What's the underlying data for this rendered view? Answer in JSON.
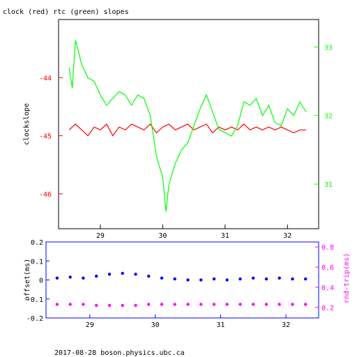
{
  "footer": "2017-08-28  boson.physics.ubc.ca",
  "chart_data": [
    {
      "type": "line",
      "title": "clock (red) rtc (green) slopes",
      "ylabel": "clockslope",
      "x_ticks": [
        "29",
        "30",
        "31",
        "32"
      ],
      "xlim": [
        28.33,
        32.5
      ],
      "ylim_left": [
        -46.6,
        -43.0
      ],
      "ylim_right": [
        30.35,
        33.4
      ],
      "left_ticks": [
        "-44",
        "-45",
        "-46"
      ],
      "right_ticks": [
        "33",
        "32",
        "31"
      ],
      "colors": {
        "clock": "#ff0000",
        "rtc": "#00ff00"
      },
      "series": [
        {
          "name": "clock",
          "axis": "left",
          "color": "#ff0000",
          "x": [
            28.5,
            28.6,
            28.7,
            28.8,
            28.9,
            29.0,
            29.1,
            29.2,
            29.3,
            29.4,
            29.5,
            29.6,
            29.7,
            29.8,
            29.9,
            30.0,
            30.1,
            30.2,
            30.3,
            30.4,
            30.5,
            30.6,
            30.7,
            30.8,
            30.9,
            31.0,
            31.1,
            31.2,
            31.3,
            31.4,
            31.5,
            31.6,
            31.7,
            31.8,
            31.9,
            32.0,
            32.1,
            32.2,
            32.3
          ],
          "y": [
            -44.9,
            -44.8,
            -44.9,
            -45.0,
            -44.85,
            -44.9,
            -44.8,
            -45.0,
            -44.85,
            -44.9,
            -44.8,
            -44.85,
            -44.9,
            -44.8,
            -44.95,
            -44.85,
            -44.8,
            -44.9,
            -44.85,
            -44.8,
            -44.9,
            -44.85,
            -44.8,
            -44.95,
            -44.85,
            -44.9,
            -44.85,
            -44.9,
            -44.8,
            -44.9,
            -44.85,
            -44.9,
            -44.85,
            -44.9,
            -44.85,
            -44.9,
            -44.95,
            -44.9,
            -44.9
          ]
        },
        {
          "name": "rtc",
          "axis": "right",
          "color": "#00ff00",
          "x": [
            28.5,
            28.55,
            28.6,
            28.7,
            28.8,
            28.9,
            29.0,
            29.1,
            29.2,
            29.3,
            29.4,
            29.5,
            29.6,
            29.7,
            29.8,
            29.9,
            30.0,
            30.05,
            30.1,
            30.2,
            30.3,
            30.4,
            30.5,
            30.6,
            30.7,
            30.8,
            30.9,
            31.0,
            31.1,
            31.2,
            31.3,
            31.4,
            31.5,
            31.6,
            31.7,
            31.8,
            31.9,
            32.0,
            32.1,
            32.2,
            32.3
          ],
          "y": [
            32.7,
            32.4,
            33.1,
            32.75,
            32.55,
            32.5,
            32.3,
            32.15,
            32.25,
            32.35,
            32.3,
            32.15,
            32.3,
            32.25,
            32.0,
            31.4,
            31.1,
            30.6,
            31.0,
            31.3,
            31.5,
            31.6,
            31.85,
            32.1,
            32.3,
            32.05,
            31.8,
            31.75,
            31.7,
            31.85,
            32.2,
            32.15,
            32.25,
            32.0,
            32.15,
            31.9,
            31.85,
            32.1,
            32.0,
            32.2,
            32.05
          ]
        }
      ]
    },
    {
      "type": "scatter",
      "x_ticks": [
        "29",
        "30",
        "31",
        "32"
      ],
      "xlim": [
        28.33,
        32.5
      ],
      "ylim_left": [
        -0.2,
        0.2
      ],
      "ylim_right": [
        0.095,
        0.85
      ],
      "left_ticks": [
        "0.2",
        "0.1",
        "0",
        "-0.1",
        "-0.2"
      ],
      "right_ticks": [
        "0.8",
        "0.6",
        "0.4",
        "0.2"
      ],
      "ylabel_left": "offset(ms)",
      "ylabel_right": "rnd-trip(ms)",
      "colors": {
        "offset": "#0000ff",
        "roundtrip": "#ff00ff"
      },
      "series": [
        {
          "name": "offset",
          "axis": "left",
          "color": "#0000ff",
          "x": [
            28.5,
            28.7,
            28.9,
            29.1,
            29.3,
            29.5,
            29.7,
            29.9,
            30.1,
            30.3,
            30.5,
            30.7,
            30.9,
            31.1,
            31.3,
            31.5,
            31.7,
            31.9,
            32.1,
            32.3
          ],
          "y": [
            0.01,
            0.015,
            0.01,
            0.02,
            0.03,
            0.035,
            0.03,
            0.02,
            0.01,
            0.005,
            0.0,
            0.0,
            0.005,
            0.0,
            0.005,
            0.01,
            0.005,
            0.01,
            0.005,
            0.005
          ]
        },
        {
          "name": "roundtrip",
          "axis": "right",
          "color": "#ff00ff",
          "x": [
            28.5,
            28.7,
            28.9,
            29.1,
            29.3,
            29.5,
            29.7,
            29.9,
            30.1,
            30.3,
            30.5,
            30.7,
            30.9,
            31.1,
            31.3,
            31.5,
            31.7,
            31.9,
            32.1,
            32.3
          ],
          "y": [
            0.23,
            0.23,
            0.23,
            0.22,
            0.22,
            0.22,
            0.22,
            0.23,
            0.23,
            0.23,
            0.23,
            0.23,
            0.23,
            0.23,
            0.23,
            0.23,
            0.23,
            0.23,
            0.23,
            0.23
          ]
        }
      ]
    }
  ]
}
